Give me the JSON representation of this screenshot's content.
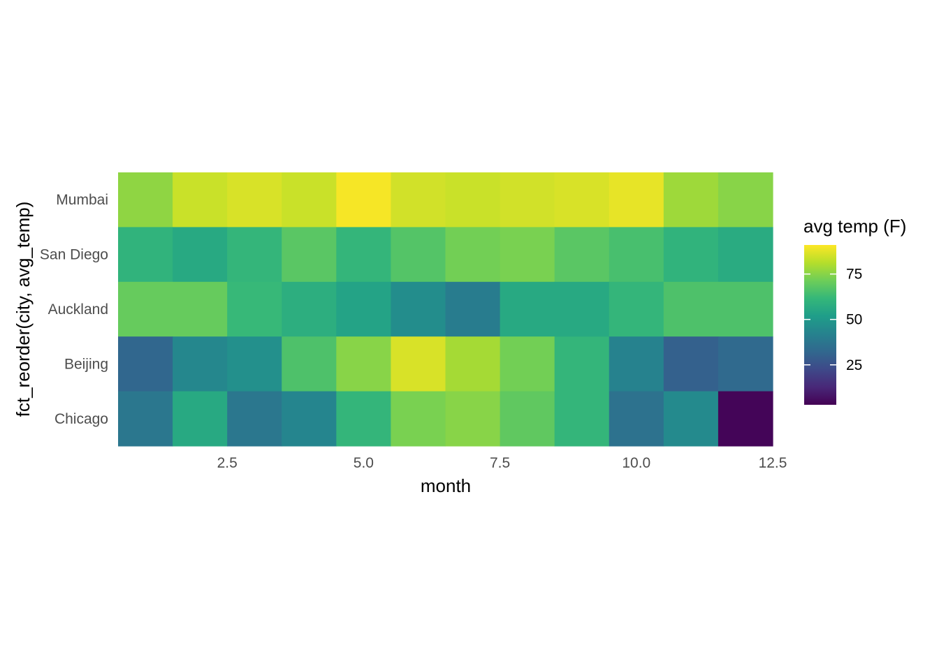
{
  "chart_data": {
    "type": "heatmap",
    "xlabel": "month",
    "ylabel": "fct_reorder(city, avg_temp)",
    "x_ticks": [
      "2.5",
      "5.0",
      "7.5",
      "10.0",
      "12.5"
    ],
    "x_tick_values": [
      2.5,
      5.0,
      7.5,
      10.0,
      12.5
    ],
    "xlim": [
      0.5,
      12.5
    ],
    "months": [
      1,
      2,
      3,
      4,
      5,
      6,
      7,
      8,
      9,
      10,
      11,
      12
    ],
    "categories": [
      "Mumbai",
      "San Diego",
      "Auckland",
      "Beijing",
      "Chicago"
    ],
    "values": {
      "Mumbai": [
        76,
        84,
        86,
        84,
        90,
        85,
        84,
        85,
        86,
        88,
        78,
        75
      ],
      "San Diego": [
        60,
        56,
        61,
        68,
        61,
        67,
        72,
        73,
        68,
        65,
        60,
        57
      ],
      "Auckland": [
        70,
        70,
        62,
        58,
        54,
        46,
        40,
        56,
        56,
        61,
        66,
        66
      ],
      "Beijing": [
        32,
        44,
        47,
        66,
        75,
        86,
        79,
        72,
        61,
        42,
        30,
        33
      ],
      "Chicago": [
        38,
        56,
        38,
        43,
        61,
        73,
        75,
        69,
        61,
        36,
        45,
        4
      ]
    },
    "colorbar": {
      "title": "avg temp (F)",
      "ticks": [
        "25",
        "50",
        "75"
      ],
      "tick_values": [
        25,
        50,
        75
      ],
      "range": [
        3,
        91
      ],
      "palette": "viridis"
    },
    "grid": false
  }
}
